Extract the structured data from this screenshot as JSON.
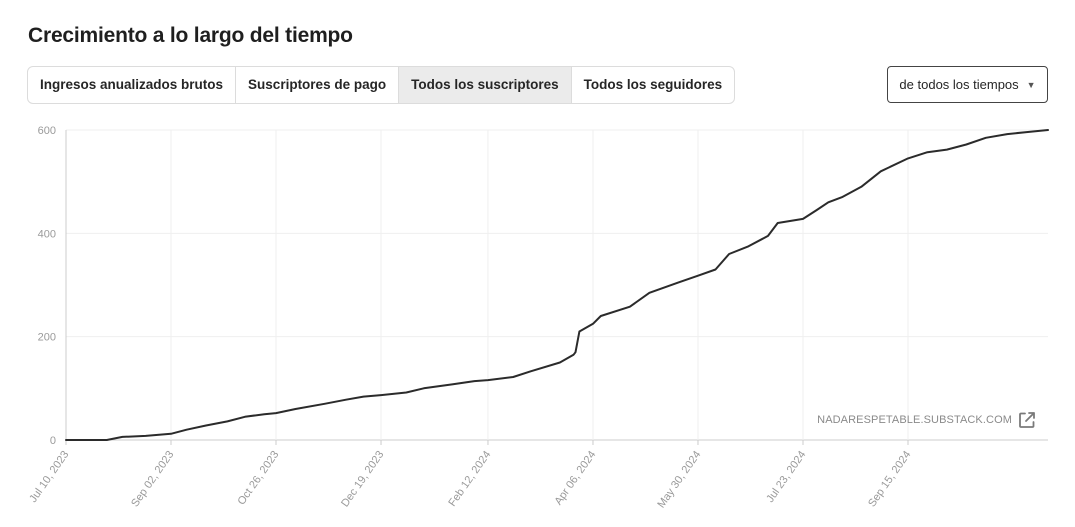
{
  "header": {
    "title": "Crecimiento a lo largo del tiempo"
  },
  "tabs": [
    {
      "label": "Ingresos anualizados brutos",
      "active": false
    },
    {
      "label": "Suscriptores de pago",
      "active": false
    },
    {
      "label": "Todos los suscriptores",
      "active": true
    },
    {
      "label": "Todos los seguidores",
      "active": false
    }
  ],
  "range_select": {
    "value": "de todos los tiempos",
    "icon": "caret-down-icon"
  },
  "attribution": {
    "text": "NADARESPETABLE.SUBSTACK.COM",
    "icon": "external-link-icon"
  },
  "colors": {
    "line": "#2b2b2b",
    "grid": "#efefef",
    "axis": "#cccccc",
    "tick_text": "#9a9a9a",
    "active_tab": "#ebebeb"
  },
  "chart_data": {
    "type": "line",
    "title": "",
    "xlabel": "",
    "ylabel": "",
    "ylim": [
      0,
      600
    ],
    "yticks": [
      0,
      200,
      400,
      600
    ],
    "xlim": [
      "2023-07-10",
      "2024-11-26"
    ],
    "xticks": [
      "2023-07-10",
      "2023-09-02",
      "2023-10-26",
      "2023-12-19",
      "2024-02-12",
      "2024-04-06",
      "2024-05-30",
      "2024-07-23",
      "2024-09-15"
    ],
    "xtick_labels": [
      "Jul 10, 2023",
      "Sep 02, 2023",
      "Oct 26, 2023",
      "Dec 19, 2023",
      "Feb 12, 2024",
      "Apr 06, 2024",
      "May 30, 2024",
      "Jul 23, 2024",
      "Sep 15, 2024"
    ],
    "grid": true,
    "series": [
      {
        "x": [
          "2023-07-10",
          "2023-07-31",
          "2023-08-08",
          "2023-08-20",
          "2023-09-02",
          "2023-09-10",
          "2023-09-20",
          "2023-10-01",
          "2023-10-10",
          "2023-10-20",
          "2023-10-26",
          "2023-11-05",
          "2023-11-20",
          "2023-12-01",
          "2023-12-10",
          "2023-12-19",
          "2024-01-01",
          "2024-01-10",
          "2024-01-25",
          "2024-02-05",
          "2024-02-12",
          "2024-02-25",
          "2024-03-05",
          "2024-03-20",
          "2024-03-27",
          "2024-03-28",
          "2024-03-30",
          "2024-04-06",
          "2024-04-10",
          "2024-04-25",
          "2024-05-05",
          "2024-05-20",
          "2024-05-30",
          "2024-06-08",
          "2024-06-15",
          "2024-06-25",
          "2024-07-05",
          "2024-07-10",
          "2024-07-23",
          "2024-07-30",
          "2024-08-05",
          "2024-08-12",
          "2024-08-22",
          "2024-09-01",
          "2024-09-15",
          "2024-09-25",
          "2024-10-05",
          "2024-10-15",
          "2024-10-25",
          "2024-11-05",
          "2024-11-15",
          "2024-11-26"
        ],
        "y": [
          0,
          0,
          6,
          8,
          12,
          20,
          28,
          36,
          45,
          50,
          52,
          60,
          70,
          78,
          84,
          87,
          92,
          100,
          108,
          114,
          116,
          122,
          133,
          150,
          165,
          170,
          210,
          225,
          240,
          258,
          285,
          305,
          318,
          330,
          360,
          375,
          395,
          420,
          428,
          445,
          460,
          470,
          490,
          520,
          545,
          557,
          562,
          572,
          585,
          592,
          596,
          600
        ]
      }
    ]
  }
}
